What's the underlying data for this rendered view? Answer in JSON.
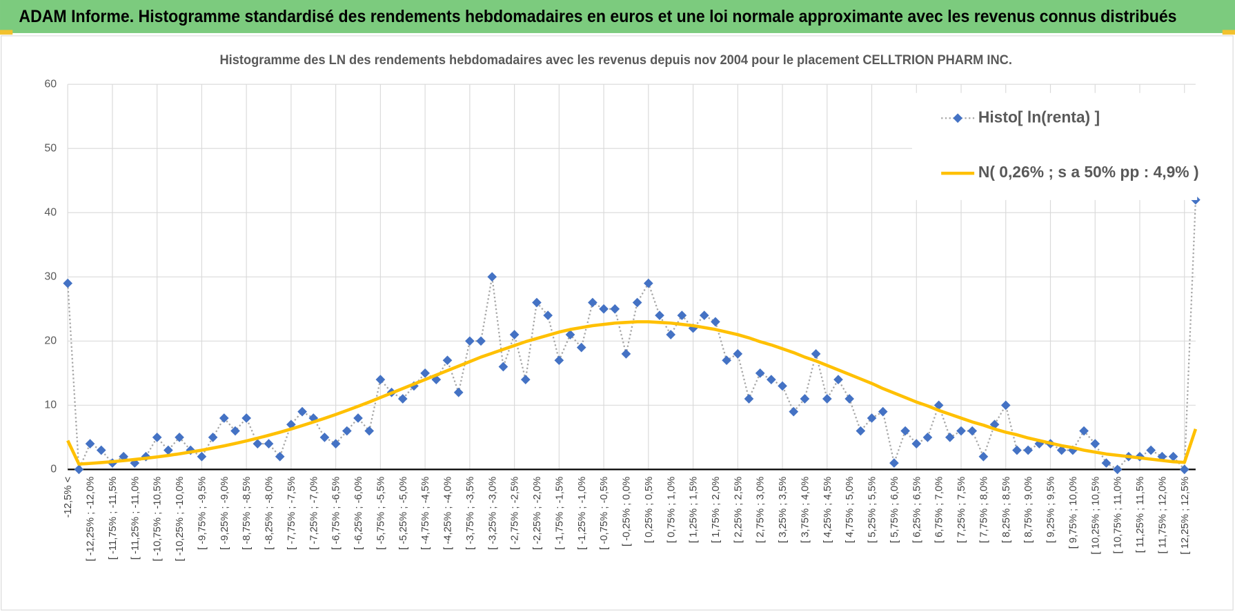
{
  "header": {
    "title": "ADAM Informe. Histogramme standardisé des rendements hebdomadaires en euros et une loi normale approximante avec les revenus connus distribués"
  },
  "chart_data": {
    "type": "line",
    "title": "Histogramme des LN des rendements hebdomadaires avec les revenus depuis nov 2004 pour le placement CELLTRION PHARM INC.",
    "categories": [
      "-12,5% <",
      null,
      "[ -12,25% ; -12,0%",
      null,
      "[ -11,75% ; -11,5%",
      null,
      "[ -11,25% ; -11,0%",
      null,
      "[ -10,75% ; -10,5%",
      null,
      "[ -10,25% ; -10,0%",
      null,
      "[ -9,75% ; -9,5%",
      null,
      "[ -9,25% ; -9,0%",
      null,
      "[ -8,75% ; -8,5%",
      null,
      "[ -8,25% ; -8,0%",
      null,
      "[ -7,75% ; -7,5%",
      null,
      "[ -7,25% ; -7,0%",
      null,
      "[ -6,75% ; -6,5%",
      null,
      "[ -6,25% ; -6,0%",
      null,
      "[ -5,75% ; -5,5%",
      null,
      "[ -5,25% ; -5,0%",
      null,
      "[ -4,75% ; -4,5%",
      null,
      "[ -4,25% ; -4,0%",
      null,
      "[ -3,75% ; -3,5%",
      null,
      "[ -3,25% ; -3,0%",
      null,
      "[ -2,75% ; -2,5%",
      null,
      "[ -2,25% ; -2,0%",
      null,
      "[ -1,75% ; -1,5%",
      null,
      "[ -1,25% ; -1,0%",
      null,
      "[ -0,75% ; -0,5%",
      null,
      "[ -0,25% ; 0,0%",
      null,
      "[ 0,25% ; 0,5%",
      null,
      "[ 0,75% ; 1,0%",
      null,
      "[ 1,25% ; 1,5%",
      null,
      "[ 1,75% ; 2,0%",
      null,
      "[ 2,25% ; 2,5%",
      null,
      "[ 2,75% ; 3,0%",
      null,
      "[ 3,25% ; 3,5%",
      null,
      "[ 3,75% ; 4,0%",
      null,
      "[ 4,25% ; 4,5%",
      null,
      "[ 4,75% ; 5,0%",
      null,
      "[ 5,25% ; 5,5%",
      null,
      "[ 5,75% ; 6,0%",
      null,
      "[ 6,25% ; 6,5%",
      null,
      "[ 6,75% ; 7,0%",
      null,
      "[ 7,25% ; 7,5%",
      null,
      "[ 7,75% ; 8,0%",
      null,
      "[ 8,25% ; 8,5%",
      null,
      "[ 8,75% ; 9,0%",
      null,
      "[ 9,25% ; 9,5%",
      null,
      "[ 9,75% ; 10,0%",
      null,
      "[ 10,25% ; 10,5%",
      null,
      "[ 10,75% ; 11,0%",
      null,
      "[ 11,25% ; 11,5%",
      null,
      "[ 11,75% ; 12,0%",
      null,
      "[ 12,25% ; 12,5%",
      null
    ],
    "series": [
      {
        "name": "Histo[ ln(renta) ]",
        "color": "#4472c4",
        "line_color": "#a6a6a6",
        "marker": "diamond",
        "line_style": "dotted",
        "values": [
          29,
          0,
          4,
          3,
          1,
          2,
          1,
          2,
          5,
          3,
          5,
          3,
          2,
          5,
          8,
          6,
          8,
          4,
          4,
          2,
          7,
          9,
          8,
          5,
          4,
          6,
          8,
          6,
          14,
          12,
          11,
          13,
          15,
          14,
          17,
          12,
          20,
          20,
          30,
          16,
          21,
          14,
          26,
          24,
          17,
          21,
          19,
          26,
          25,
          25,
          18,
          26,
          29,
          24,
          21,
          24,
          22,
          24,
          23,
          17,
          18,
          11,
          15,
          14,
          13,
          9,
          11,
          18,
          11,
          14,
          11,
          6,
          8,
          9,
          1,
          6,
          4,
          5,
          10,
          5,
          6,
          6,
          2,
          7,
          10,
          3,
          3,
          4,
          4,
          3,
          3,
          6,
          4,
          1,
          0,
          2,
          2,
          3,
          2,
          2,
          0,
          42
        ]
      },
      {
        "name": "N( 0,26% ; s a 50% pp : 4,9% )",
        "color": "#ffc000",
        "line_style": "solid",
        "values": [
          4.5,
          0.83,
          0.94,
          1.07,
          1.21,
          1.37,
          1.55,
          1.74,
          1.95,
          2.18,
          2.43,
          2.71,
          3.0,
          3.33,
          3.67,
          4.04,
          4.44,
          4.87,
          5.32,
          5.79,
          6.3,
          6.83,
          7.39,
          7.96,
          8.56,
          9.19,
          9.84,
          10.5,
          11.2,
          11.9,
          12.6,
          13.3,
          14.0,
          14.7,
          15.4,
          16.1,
          16.8,
          17.5,
          18.1,
          18.7,
          19.3,
          19.9,
          20.4,
          20.9,
          21.4,
          21.8,
          22.1,
          22.4,
          22.6,
          22.8,
          22.9,
          23.0,
          23.0,
          22.9,
          22.8,
          22.6,
          22.4,
          22.1,
          21.8,
          21.4,
          21.0,
          20.5,
          19.9,
          19.4,
          18.8,
          18.2,
          17.5,
          16.9,
          16.2,
          15.5,
          14.8,
          14.1,
          13.4,
          12.6,
          11.9,
          11.2,
          10.5,
          9.9,
          9.2,
          8.6,
          8.0,
          7.4,
          6.9,
          6.3,
          5.8,
          5.4,
          4.9,
          4.5,
          4.1,
          3.7,
          3.4,
          3.0,
          2.7,
          2.4,
          2.2,
          2.0,
          1.8,
          1.6,
          1.4,
          1.2,
          1.1,
          6.3
        ]
      }
    ],
    "ylim": [
      0,
      60
    ],
    "yticks": [
      0,
      10,
      20,
      30,
      40,
      50,
      60
    ],
    "grid": true,
    "legend": "upper right"
  }
}
